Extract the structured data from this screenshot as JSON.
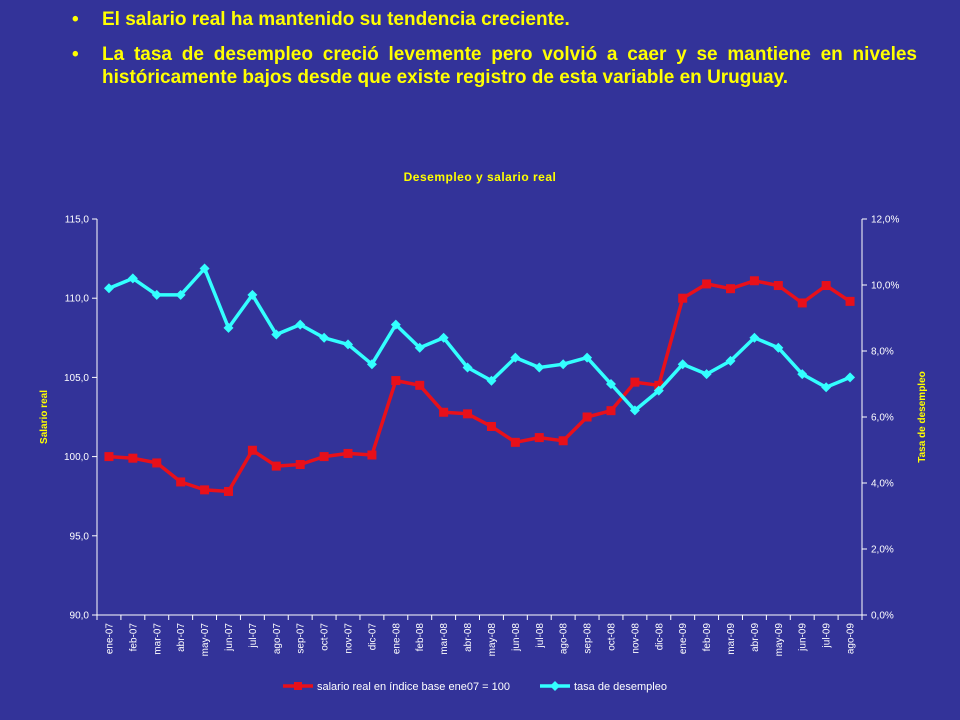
{
  "bullets": [
    {
      "text": "El salario real ha mantenido su tendencia creciente."
    },
    {
      "text": "La tasa de desempleo creció levemente pero volvió a caer y se mantiene en niveles históricamente bajos desde que existe registro de esta variable en Uruguay."
    }
  ],
  "chart_data": {
    "type": "line",
    "title": "Desempleo y salario real",
    "ylabel": "Salario real",
    "y2label": "Tasa de desempleo",
    "ylim": [
      90,
      115
    ],
    "y2lim": [
      0,
      12
    ],
    "yticks": [
      "90,0",
      "95,0",
      "100,0",
      "105,0",
      "110,0",
      "115,0"
    ],
    "y2ticks": [
      "0,0%",
      "2,0%",
      "4,0%",
      "6,0%",
      "8,0%",
      "10,0%",
      "12,0%"
    ],
    "categories": [
      "ene-07",
      "feb-07",
      "mar-07",
      "abr-07",
      "may-07",
      "jun-07",
      "jul-07",
      "ago-07",
      "sep-07",
      "oct-07",
      "nov-07",
      "dic-07",
      "ene-08",
      "feb-08",
      "mar-08",
      "abr-08",
      "may-08",
      "jun-08",
      "jul-08",
      "ago-08",
      "sep-08",
      "oct-08",
      "nov-08",
      "dic-08",
      "ene-09",
      "feb-09",
      "mar-09",
      "abr-09",
      "may-09",
      "jun-09",
      "jul-09",
      "ago-09"
    ],
    "series": [
      {
        "name": "salario real en índice base ene07 = 100",
        "axis": "left",
        "color": "#e8101a",
        "marker": "square",
        "values": [
          100.0,
          99.9,
          99.6,
          98.4,
          97.9,
          97.8,
          100.4,
          99.4,
          99.5,
          100.0,
          100.2,
          100.1,
          104.8,
          104.5,
          102.8,
          102.7,
          101.9,
          100.9,
          101.2,
          101.0,
          102.5,
          102.9,
          104.7,
          104.5,
          110.0,
          110.9,
          110.6,
          111.1,
          110.8,
          109.7,
          110.8,
          109.8
        ]
      },
      {
        "name": "tasa de desempleo",
        "axis": "right",
        "color": "#33ffff",
        "marker": "diamond",
        "values": [
          9.9,
          10.2,
          9.7,
          9.7,
          10.5,
          8.7,
          9.7,
          8.5,
          8.8,
          8.4,
          8.2,
          7.6,
          8.8,
          8.1,
          8.4,
          7.5,
          7.1,
          7.8,
          7.5,
          7.6,
          7.8,
          7.0,
          6.2,
          6.8,
          7.6,
          7.3,
          7.7,
          8.4,
          8.1,
          7.3,
          6.9,
          7.2
        ]
      }
    ],
    "grid": false,
    "legend": "bottom"
  }
}
